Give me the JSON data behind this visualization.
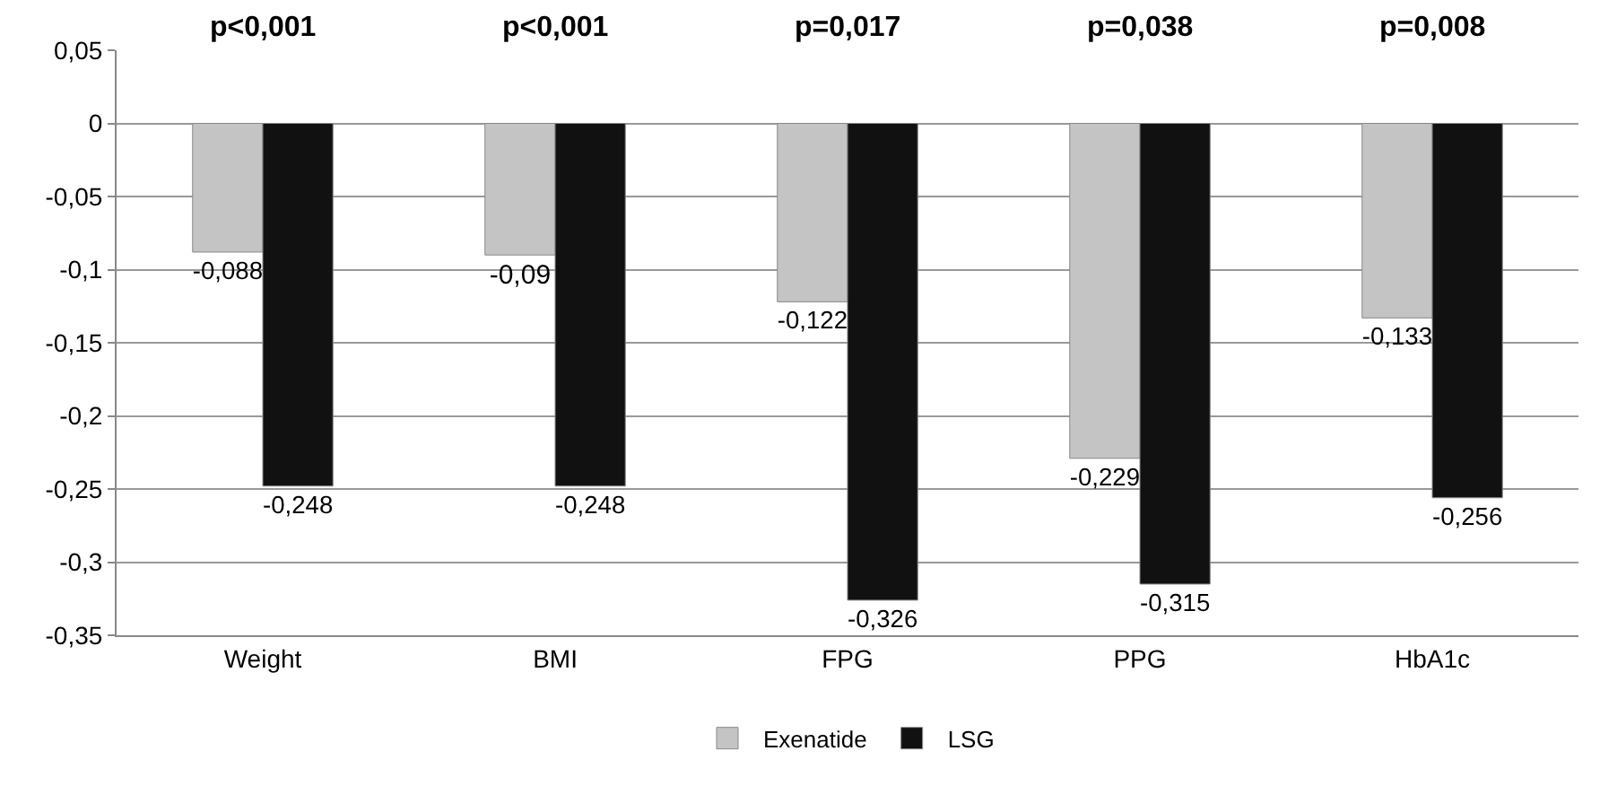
{
  "chart_data": {
    "type": "bar",
    "categories": [
      "Weight",
      "BMI",
      "FPG",
      "PPG",
      "HbA1c"
    ],
    "series": [
      {
        "name": "Exenatide",
        "color": "#c4c4c4",
        "values": [
          -0.088,
          -0.09,
          -0.122,
          -0.229,
          -0.133
        ],
        "value_labels": [
          "-0,088",
          "-0,09",
          "-0,122",
          "-0,229",
          "-0,133"
        ]
      },
      {
        "name": "LSG",
        "color": "#111111",
        "values": [
          -0.248,
          -0.248,
          -0.326,
          -0.315,
          -0.256
        ],
        "value_labels": [
          "-0,248",
          "-0,248",
          "-0,326",
          "-0,315",
          "-0,256"
        ]
      }
    ],
    "ylim": [
      -0.35,
      0.05
    ],
    "yticks": [
      {
        "value": 0.05,
        "label": "0,05"
      },
      0,
      {
        "value": -0.05,
        "label": "-0,05"
      },
      {
        "value": -0.1,
        "label": "-0,1"
      },
      {
        "value": -0.15,
        "label": "-0,15"
      },
      {
        "value": -0.2,
        "label": "-0,2"
      },
      {
        "value": -0.25,
        "label": "-0,25"
      },
      {
        "value": -0.3,
        "label": "-0,3"
      },
      {
        "value": -0.35,
        "label": "-0,35"
      }
    ],
    "grid": "y",
    "legend": "bottom",
    "annotations": [
      "p<0,001",
      "p<0,001",
      "p=0,017",
      "p=0,038",
      "p=0,008"
    ]
  }
}
